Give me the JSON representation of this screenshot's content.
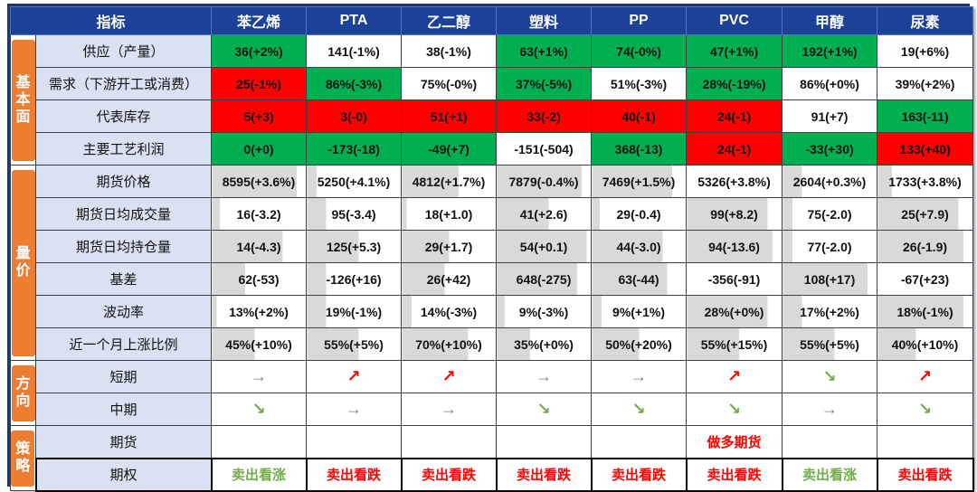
{
  "colors": {
    "header_bg": "#1B4298",
    "header_border": "#4E74C0",
    "sidebar_bg": "#ED7D31",
    "label_bg": "#D9E1F2",
    "positive_bg": "#00B050",
    "negative_bg": "#FF0000",
    "neutral_bg": "#FFFFFF",
    "bar_fill": "#D9D9D9",
    "arrow_up": "#FF0000",
    "arrow_down": "#70AD47",
    "arrow_flat": "#808080",
    "strategy_red": "#FF0000",
    "strategy_green": "#70AD47",
    "grid_line": "#3C4049",
    "frame": "#203864"
  },
  "icons": {
    "flat": "→",
    "up": "↗",
    "down": "↘"
  },
  "chart_data": {
    "type": "table",
    "columns": [
      "指标",
      "苯乙烯",
      "PTA",
      "乙二醇",
      "塑料",
      "PP",
      "PVC",
      "甲醇",
      "尿素"
    ],
    "cell_bg_legend": {
      "g": "green=favorable",
      "r": "red=unfavorable",
      "w": "white=neutral"
    },
    "sections": [
      {
        "id": "fundamentals",
        "label": "基本面",
        "rows": [
          {
            "label": "供应（产量）",
            "kind": "num",
            "cells": [
              {
                "t": "36(+2%)",
                "bg": "g"
              },
              {
                "t": "141(-1%)",
                "bg": "w"
              },
              {
                "t": "38(-1%)",
                "bg": "w"
              },
              {
                "t": "63(+1%)",
                "bg": "g"
              },
              {
                "t": "74(-0%)",
                "bg": "g"
              },
              {
                "t": "47(+1%)",
                "bg": "g"
              },
              {
                "t": "192(+1%)",
                "bg": "g"
              },
              {
                "t": "19(+6%)",
                "bg": "w"
              }
            ]
          },
          {
            "label": "需求（下游开工或消费）",
            "kind": "num",
            "cells": [
              {
                "t": "25(-1%)",
                "bg": "r"
              },
              {
                "t": "86%(-3%)",
                "bg": "g"
              },
              {
                "t": "75%(-0%)",
                "bg": "w"
              },
              {
                "t": "37%(-5%)",
                "bg": "g"
              },
              {
                "t": "51%(-3%)",
                "bg": "w"
              },
              {
                "t": "28%(-19%)",
                "bg": "g"
              },
              {
                "t": "86%(+0%)",
                "bg": "w"
              },
              {
                "t": "39%(+2%)",
                "bg": "w"
              }
            ]
          },
          {
            "label": "代表库存",
            "kind": "num",
            "cells": [
              {
                "t": "5(+3)",
                "bg": "r"
              },
              {
                "t": "3(-0)",
                "bg": "r"
              },
              {
                "t": "51(+1)",
                "bg": "r"
              },
              {
                "t": "33(-2)",
                "bg": "r"
              },
              {
                "t": "40(-1)",
                "bg": "r"
              },
              {
                "t": "24(-1)",
                "bg": "r"
              },
              {
                "t": "91(+7)",
                "bg": "w"
              },
              {
                "t": "163(-11)",
                "bg": "g"
              }
            ]
          },
          {
            "label": "主要工艺利润",
            "kind": "num",
            "cells": [
              {
                "t": "0(+0)",
                "bg": "g"
              },
              {
                "t": "-173(-18)",
                "bg": "g"
              },
              {
                "t": "-49(+7)",
                "bg": "g"
              },
              {
                "t": "-151(-504)",
                "bg": "w"
              },
              {
                "t": "368(-13)",
                "bg": "g"
              },
              {
                "t": "24(-1)",
                "bg": "r"
              },
              {
                "t": "-33(+30)",
                "bg": "g"
              },
              {
                "t": "133(+40)",
                "bg": "r"
              }
            ]
          }
        ]
      },
      {
        "id": "volume-price",
        "label": "量价",
        "rows": [
          {
            "label": "期货价格",
            "kind": "num",
            "cells": [
              {
                "t": "8595(+3.6%)",
                "bg": "w",
                "bar": 0.9
              },
              {
                "t": "5250(+4.1%)",
                "bg": "w",
                "bar": 0.1
              },
              {
                "t": "4812(+1.7%)",
                "bg": "w",
                "bar": 0.6
              },
              {
                "t": "7879(-0.4%)",
                "bg": "w",
                "bar": 0.9
              },
              {
                "t": "7469(+1.5%)",
                "bg": "w",
                "bar": 0.85
              },
              {
                "t": "5326(+3.8%)",
                "bg": "w",
                "bar": 0
              },
              {
                "t": "2604(+0.3%)",
                "bg": "w",
                "bar": 0.2
              },
              {
                "t": "1733(+3.8%)",
                "bg": "w",
                "bar": 0.15
              }
            ]
          },
          {
            "label": "期货日均成交量",
            "kind": "num",
            "cells": [
              {
                "t": "16(-3.2)",
                "bg": "w",
                "bar": 0.08
              },
              {
                "t": "95(-3.4)",
                "bg": "w",
                "bar": 0.2
              },
              {
                "t": "18(+1.0)",
                "bg": "w",
                "bar": 0.05
              },
              {
                "t": "41(+2.6)",
                "bg": "w",
                "bar": 0.55
              },
              {
                "t": "29(-0.4)",
                "bg": "w",
                "bar": 0.08
              },
              {
                "t": "99(+8.2)",
                "bg": "w",
                "bar": 0.85
              },
              {
                "t": "75(-2.0)",
                "bg": "w",
                "bar": 0.1
              },
              {
                "t": "25(+7.9)",
                "bg": "w",
                "bar": 0.85
              }
            ]
          },
          {
            "label": "期货日均持仓量",
            "kind": "num",
            "cells": [
              {
                "t": "14(-4.3)",
                "bg": "w",
                "bar": 0.75
              },
              {
                "t": "125(+5.3)",
                "bg": "w",
                "bar": 0.55
              },
              {
                "t": "29(+1.7)",
                "bg": "w",
                "bar": 0.5
              },
              {
                "t": "54(+0.1)",
                "bg": "w",
                "bar": 0.95
              },
              {
                "t": "44(-3.0)",
                "bg": "w",
                "bar": 0.75
              },
              {
                "t": "94(-13.6)",
                "bg": "w",
                "bar": 0.9
              },
              {
                "t": "77(-2.0)",
                "bg": "w",
                "bar": 0.1
              },
              {
                "t": "26(-1.9)",
                "bg": "w",
                "bar": 0.9
              }
            ]
          },
          {
            "label": "基差",
            "kind": "num",
            "cells": [
              {
                "t": "62(-53)",
                "bg": "w",
                "bar": 0.35
              },
              {
                "t": "-126(+16)",
                "bg": "w",
                "bar": 0.2
              },
              {
                "t": "26(+42)",
                "bg": "w",
                "bar": 0.45
              },
              {
                "t": "648(-275)",
                "bg": "w",
                "bar": 0.85
              },
              {
                "t": "63(-44)",
                "bg": "w",
                "bar": 0.8
              },
              {
                "t": "-356(-91)",
                "bg": "w",
                "bar": 0
              },
              {
                "t": "108(+17)",
                "bg": "w",
                "bar": 0.9
              },
              {
                "t": "-67(+23)",
                "bg": "w",
                "bar": 0
              }
            ]
          },
          {
            "label": "波动率",
            "kind": "num",
            "cells": [
              {
                "t": "13%(+2%)",
                "bg": "w",
                "bar": 0.05
              },
              {
                "t": "19%(-1%)",
                "bg": "w",
                "bar": 0.2
              },
              {
                "t": "14%(-3%)",
                "bg": "w",
                "bar": 0.1
              },
              {
                "t": "9%(-3%)",
                "bg": "w",
                "bar": 0.08
              },
              {
                "t": "9%(+1%)",
                "bg": "w",
                "bar": 0.1
              },
              {
                "t": "28%(+0%)",
                "bg": "w",
                "bar": 0.85
              },
              {
                "t": "17%(+2%)",
                "bg": "w",
                "bar": 0.2
              },
              {
                "t": "18%(-1%)",
                "bg": "w",
                "bar": 0.9
              }
            ]
          },
          {
            "label": "近一个月上涨比例",
            "kind": "num",
            "cells": [
              {
                "t": "45%(+10%)",
                "bg": "w",
                "bar": 0.45
              },
              {
                "t": "55%(+5%)",
                "bg": "w",
                "bar": 0.55
              },
              {
                "t": "70%(+10%)",
                "bg": "w",
                "bar": 0.7
              },
              {
                "t": "35%(+0%)",
                "bg": "w",
                "bar": 0.35
              },
              {
                "t": "50%(+20%)",
                "bg": "w",
                "bar": 0.5
              },
              {
                "t": "55%(+15%)",
                "bg": "w",
                "bar": 0.55
              },
              {
                "t": "55%(+5%)",
                "bg": "w",
                "bar": 0.55
              },
              {
                "t": "40%(+10%)",
                "bg": "w",
                "bar": 0.4
              }
            ]
          }
        ]
      },
      {
        "id": "direction",
        "label": "方向",
        "rows": [
          {
            "label": "短期",
            "kind": "arrow",
            "cells": [
              "flat",
              "up",
              "up",
              "flat",
              "flat",
              "up",
              "down",
              "up"
            ]
          },
          {
            "label": "中期",
            "kind": "arrow",
            "cells": [
              "down",
              "flat",
              "flat",
              "down",
              "down",
              "down",
              "flat",
              "down"
            ]
          }
        ]
      },
      {
        "id": "strategy",
        "label": "策略",
        "rows": [
          {
            "label": "期货",
            "kind": "text",
            "cells": [
              {
                "t": ""
              },
              {
                "t": ""
              },
              {
                "t": ""
              },
              {
                "t": ""
              },
              {
                "t": ""
              },
              {
                "t": "做多期货",
                "c": "red"
              },
              {
                "t": ""
              },
              {
                "t": ""
              }
            ]
          },
          {
            "label": "期权",
            "kind": "text",
            "cells": [
              {
                "t": "卖出看涨",
                "c": "green"
              },
              {
                "t": "卖出看跌",
                "c": "red"
              },
              {
                "t": "卖出看跌",
                "c": "red"
              },
              {
                "t": "卖出看跌",
                "c": "red"
              },
              {
                "t": "卖出看跌",
                "c": "red"
              },
              {
                "t": "卖出看跌",
                "c": "red"
              },
              {
                "t": "卖出看涨",
                "c": "green"
              },
              {
                "t": "卖出看跌",
                "c": "red"
              }
            ]
          }
        ]
      }
    ]
  }
}
